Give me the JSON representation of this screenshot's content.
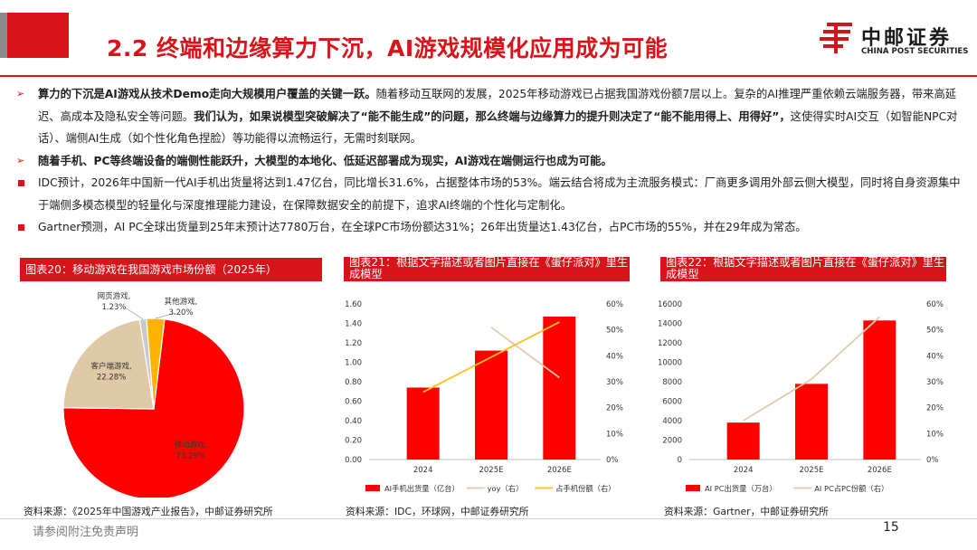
{
  "header": {
    "title": "2.2 终端和边缘算力下沉，AI游戏规模化应用成为可能",
    "logo_cn": "中邮证券",
    "logo_en": "CHINA POST SECURITIES",
    "brand_color": "#d8141b"
  },
  "body": {
    "b1_bold": "算力的下沉是AI游戏从技术Demo走向大规模用户覆盖的关键一跃。",
    "b1_text": "随着移动互联网的发展，2025年移动游戏已占据我国游戏份额7层以上。复杂的AI推理严重依赖云端服务器，带来高延迟、高成本及隐私安全等问题。",
    "b1_bold2": "我们认为，如果说模型突破解决了“能不能生成”的问题，那么终端与边缘算力的提升则决定了“能不能用得上、用得好”，",
    "b1_text2": "这使得实时AI交互（如智能NPC对话）、端侧AI生成（如个性化角色捏脸）等功能得以流畅运行，无需时刻联网。",
    "b2_bold": "随着手机、PC等终端设备的端侧性能跃升，大模型的本地化、低延迟部署成为现实，AI游戏在端侧运行也成为可能。",
    "b3_text": "IDC预计，2026年中国新一代AI手机出货量将达到1.47亿台，同比增长31.6%，占据整体市场的53%。端云结合将成为主流服务模式：厂商更多调用外部云侧大模型，同时将自身资源集中于端侧多模态模型的轻量化与深度推理能力建设，在保障数据安全的前提下，追求AI终端的个性化与定制化。",
    "b4_text": "Gartner预测，AI PC全球出货量到25年末预计达7780万台，在全球PC市场份额达31%；26年出货量达1.43亿台，占PC市场的55%，并在29年成为常态。"
  },
  "panels": {
    "p1_title": "图表20：移动游戏在我国游戏市场份额（2025年）",
    "p1_source": "资料来源：《2025年中国游戏产业报告》，中邮证券研究所",
    "p2_title": "图表21：根据文字描述或者图片直接在《蛋仔派对》里生成模型",
    "p2_source": "资料来源：IDC，环球网，中邮证券研究所",
    "p3_title": "图表22：根据文字描述或者图片直接在《蛋仔派对》里生成模型",
    "p3_source": "资料来源：Gartner，中邮证券研究所"
  },
  "footer": {
    "disclaimer": "请参阅附注免责声明",
    "page": "15"
  },
  "chart_data": [
    {
      "type": "pie",
      "labels": [
        "移动游戏",
        "客户端游戏",
        "网页游戏",
        "其他游戏"
      ],
      "values": [
        73.29,
        22.28,
        1.23,
        3.2
      ],
      "value_labels": [
        "73.29%",
        "22.28%",
        "1.23%",
        "3.20%"
      ],
      "colors": [
        "#ff0000",
        "#e0c9a6",
        "#c9c9c9",
        "#ffb300"
      ]
    },
    {
      "type": "bar",
      "categories": [
        "2024",
        "2025E",
        "2026E"
      ],
      "series": [
        {
          "name": "AI手机出货量（亿台）",
          "values": [
            0.74,
            1.12,
            1.47
          ],
          "axis": "left",
          "kind": "bar",
          "color": "#ff0000"
        },
        {
          "name": "yoy（右）",
          "values": [
            null,
            51,
            31.6
          ],
          "axis": "right",
          "kind": "line",
          "color": "#e3c9ae"
        },
        {
          "name": "占手机份额（右）",
          "values": [
            26,
            null,
            53
          ],
          "axis": "right",
          "kind": "line",
          "color": "#ffbf1f"
        }
      ],
      "y_left": {
        "min": 0,
        "max": 1.6,
        "ticks": [
          "0.00",
          "0.20",
          "0.40",
          "0.60",
          "0.80",
          "1.00",
          "1.20",
          "1.40",
          "1.60"
        ]
      },
      "y_right": {
        "min": 0,
        "max": 60,
        "ticks": [
          "0%",
          "10%",
          "20%",
          "30%",
          "40%",
          "50%",
          "60%"
        ]
      }
    },
    {
      "type": "bar",
      "categories": [
        "2024",
        "2025E",
        "2026E"
      ],
      "series": [
        {
          "name": "AI PC出货量（万台）",
          "values": [
            3800,
            7780,
            14300
          ],
          "axis": "left",
          "kind": "bar",
          "color": "#ff0000"
        },
        {
          "name": "AI PC占PC份额（右）",
          "values": [
            15,
            31,
            55
          ],
          "axis": "right",
          "kind": "line",
          "color": "#e3c9ae"
        }
      ],
      "y_left": {
        "min": 0,
        "max": 16000,
        "ticks": [
          "0",
          "2000",
          "4000",
          "6000",
          "8000",
          "10000",
          "12000",
          "14000",
          "16000"
        ]
      },
      "y_right": {
        "min": 0,
        "max": 60,
        "ticks": [
          "0%",
          "10%",
          "20%",
          "30%",
          "40%",
          "50%",
          "60%"
        ]
      }
    }
  ]
}
